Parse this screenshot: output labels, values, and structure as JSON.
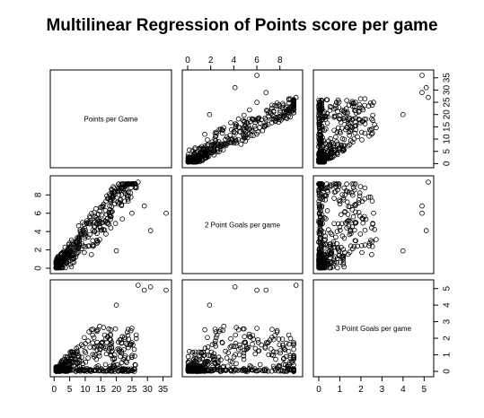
{
  "chart_data": {
    "type": "scatter",
    "title": "Multilinear Regression of Points score per game",
    "variables": [
      "Points per Game",
      "2 Point Goals per game",
      "3 Point Goals per game"
    ],
    "ranges": [
      [
        0.5,
        36
      ],
      [
        0,
        9.5
      ],
      [
        0,
        5.2
      ]
    ],
    "ticks": [
      [
        0,
        5,
        10,
        15,
        20,
        25,
        30,
        35
      ],
      [
        0,
        2,
        4,
        6,
        8
      ],
      [
        0,
        1,
        2,
        3,
        4,
        5
      ]
    ],
    "n_points": 420,
    "highlighted_points": [
      {
        "ppg": 36.0,
        "twopg": 6.0,
        "threepg": 4.9
      },
      {
        "ppg": 27.0,
        "twopg": 9.4,
        "threepg": 5.2
      },
      {
        "ppg": 23.0,
        "twopg": 9.0,
        "threepg": 0.6
      },
      {
        "ppg": 31.0,
        "twopg": 4.1,
        "threepg": 5.1
      },
      {
        "ppg": 26.0,
        "twopg": 8.8,
        "threepg": 0.4
      },
      {
        "ppg": 29.0,
        "twopg": 6.8,
        "threepg": 4.9
      },
      {
        "ppg": 20.0,
        "twopg": 1.9,
        "threepg": 4.0
      },
      {
        "ppg": 25.0,
        "twopg": 6.0,
        "threepg": 2.6
      }
    ],
    "grid": false,
    "legend": "none"
  }
}
